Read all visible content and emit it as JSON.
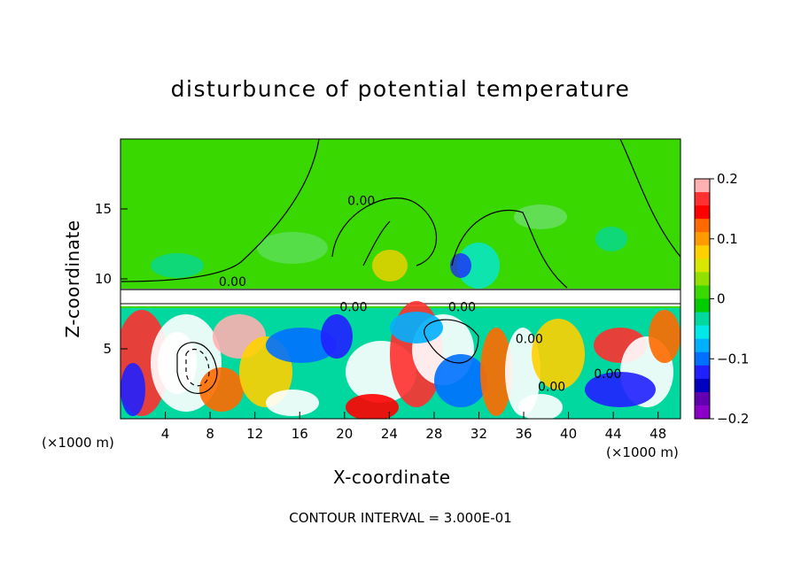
{
  "chart_data": {
    "type": "heatmap",
    "title": "disturbunce of potential temperature",
    "xlabel": "X-coordinate",
    "ylabel": "Z-coordinate",
    "x_unit": "(×1000 m)",
    "x_ticks": [
      4,
      8,
      12,
      16,
      20,
      24,
      28,
      32,
      36,
      40,
      44,
      48
    ],
    "y_ticks": [
      5,
      10,
      15
    ],
    "xlim": [
      0,
      50
    ],
    "ylim": [
      0,
      20
    ],
    "colorbar": {
      "ticks": [
        "0.2",
        "0.1",
        "0",
        "−0.1",
        "−0.2"
      ],
      "range": [
        -0.2,
        0.2
      ],
      "colors": [
        "#ffb0b0",
        "#ff3030",
        "#ff0000",
        "#ff6a00",
        "#ff9a00",
        "#ffd000",
        "#d8e600",
        "#90e000",
        "#38d800",
        "#00cc00",
        "#00d8a0",
        "#00e8e8",
        "#00b0ff",
        "#0070ff",
        "#2020ff",
        "#0000c0",
        "#6000b0",
        "#8a00c8"
      ]
    },
    "contour_interval": "CONTOUR INTERVAL = 3.000E-01",
    "contour_labels": [
      {
        "text": "0.00",
        "x": 21.5,
        "y": 15.3
      },
      {
        "text": "0.00",
        "x": 10.0,
        "y": 9.5
      },
      {
        "text": "0.00",
        "x": 20.8,
        "y": 7.7
      },
      {
        "text": "0.00",
        "x": 30.5,
        "y": 7.7
      },
      {
        "text": "0.00",
        "x": 36.5,
        "y": 5.4
      },
      {
        "text": "0.00",
        "x": 43.5,
        "y": 2.9
      },
      {
        "text": "0.00",
        "x": 38.5,
        "y": 2.0
      }
    ]
  }
}
